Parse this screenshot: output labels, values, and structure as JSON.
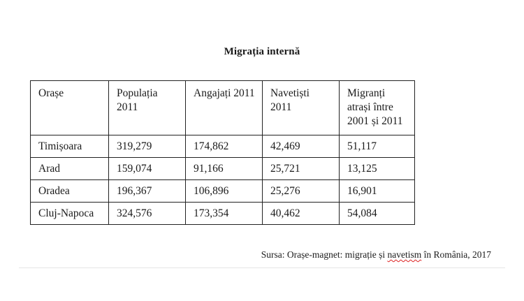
{
  "title": "Migrația internă",
  "table": {
    "headers": [
      "Orașe",
      "Populația 2011",
      "Angajați 2011",
      "Navetiști 2011",
      "Migranți atrași între 2001 și 2011"
    ],
    "rows": [
      [
        "Timișoara",
        "319,279",
        "174,862",
        "42,469",
        "51,117"
      ],
      [
        "Arad",
        "159,074",
        "91,166",
        "25,721",
        "13,125"
      ],
      [
        "Oradea",
        "196,367",
        "106,896",
        "25,276",
        "16,901"
      ],
      [
        "Cluj-Napoca",
        "324,576",
        "173,354",
        "40,462",
        "54,084"
      ]
    ]
  },
  "source": {
    "prefix": "Sursa: Orașe-magnet: migrație și ",
    "highlighted_word": "navetism",
    "suffix": " în România, 2017"
  }
}
